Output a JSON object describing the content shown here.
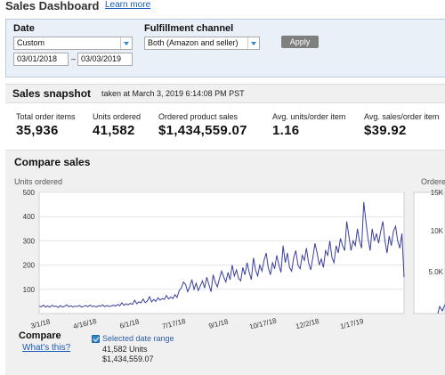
{
  "header": {
    "title": "Sales Dashboard",
    "learn_more": "Learn more"
  },
  "filters": {
    "date_label": "Date",
    "date_range_select": "Custom",
    "start_date": "03/01/2018",
    "date_separator": "–",
    "end_date": "03/03/2019",
    "channel_label": "Fulfillment channel",
    "channel_select": "Both (Amazon and seller)",
    "apply_label": "Apply"
  },
  "snapshot": {
    "title": "Sales snapshot",
    "subtitle": "taken at March 3, 2019 6:14:08 PM PST",
    "metrics": [
      {
        "label": "Total order items",
        "value": "35,936"
      },
      {
        "label": "Units ordered",
        "value": "41,582"
      },
      {
        "label": "Ordered product sales",
        "value": "$1,434,559.07"
      },
      {
        "label": "Avg. units/order item",
        "value": "1.16"
      },
      {
        "label": "Avg. sales/order item",
        "value": "$39.92"
      }
    ]
  },
  "compare": {
    "title": "Compare sales",
    "units_chart_title": "Units ordered",
    "sales_chart_title": "Ordere",
    "legend_title": "Compare",
    "whats_this": "What's this?",
    "selected_label": "Selected date range",
    "selected_units": "41,582 Units",
    "selected_sales": "$1,434,559.07"
  },
  "colors": {
    "series": "#3a3f9e",
    "link": "#1a5bb8",
    "accent": "#2f86c9"
  },
  "chart_data": {
    "type": "line",
    "title": "",
    "ylabel": "Units ordered",
    "ylim": [
      0,
      500
    ],
    "yticks": [
      100,
      200,
      300,
      400,
      500
    ],
    "xlim": [
      "2018-03-01",
      "2019-03-03"
    ],
    "xticks": [
      "3/1/18",
      "4/16/18",
      "6/1/18",
      "7/17/18",
      "9/1/18",
      "10/17/18",
      "12/2/18",
      "1/17/19"
    ],
    "grid": true,
    "series": [
      {
        "values": [
          30,
          28,
          35,
          27,
          32,
          26,
          34,
          29,
          31,
          25,
          33,
          27,
          30,
          36,
          28,
          32,
          27,
          31,
          29,
          34,
          26,
          30,
          33,
          28,
          35,
          29,
          31,
          27,
          32,
          30,
          36,
          28,
          33,
          29,
          31,
          35,
          30,
          38,
          32,
          45,
          34,
          40,
          36,
          42,
          38,
          55,
          40,
          48,
          44,
          60,
          45,
          52,
          70,
          48,
          58,
          50,
          65,
          55,
          62,
          58,
          75,
          60,
          68,
          62,
          78,
          66,
          95,
          105,
          130,
          120,
          90,
          110,
          140,
          100,
          125,
          95,
          115,
          135,
          105,
          150,
          120,
          90,
          160,
          130,
          110,
          145,
          175,
          150,
          130,
          170,
          140,
          200,
          155,
          180,
          145,
          135,
          190,
          160,
          210,
          170,
          140,
          230,
          180,
          155,
          200,
          175,
          220,
          250,
          190,
          160,
          210,
          185,
          240,
          200,
          170,
          280,
          210,
          250,
          190,
          175,
          230,
          260,
          200,
          185,
          240,
          220,
          270,
          210,
          180,
          230,
          290,
          250,
          200,
          225,
          190,
          260,
          240,
          300,
          230,
          210,
          280,
          250,
          310,
          280,
          260,
          380,
          320,
          260,
          300,
          280,
          350,
          300,
          270,
          460,
          380,
          310,
          260,
          350,
          300,
          330,
          290,
          340,
          380,
          300,
          250,
          320,
          280,
          340,
          360,
          300,
          270,
          330,
          150
        ]
      }
    ]
  }
}
